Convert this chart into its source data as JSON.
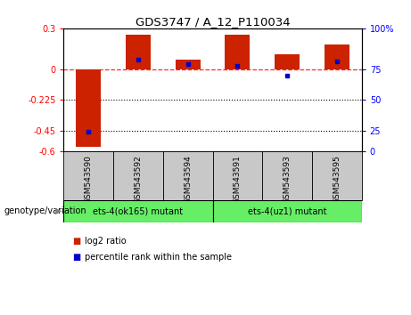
{
  "title": "GDS3747 / A_12_P110034",
  "samples": [
    "GSM543590",
    "GSM543592",
    "GSM543594",
    "GSM543591",
    "GSM543593",
    "GSM543595"
  ],
  "log2_ratio": [
    -0.57,
    0.255,
    0.07,
    0.255,
    0.11,
    0.18
  ],
  "percentile_rank": [
    18,
    81,
    78,
    77,
    69,
    80
  ],
  "groups": [
    {
      "label": "ets-4(ok165) mutant",
      "indices": [
        0,
        1,
        2
      ]
    },
    {
      "label": "ets-4(uz1) mutant",
      "indices": [
        3,
        4,
        5
      ]
    }
  ],
  "ylim": [
    -0.6,
    0.3
  ],
  "yticks_left": [
    0.3,
    0.0,
    -0.225,
    -0.45,
    -0.6
  ],
  "yticklabels_left": [
    "0.3",
    "0",
    "-0.225",
    "-0.45",
    "-0.6"
  ],
  "yticks_right_pos": [
    0.3,
    0.0,
    -0.225,
    -0.45,
    -0.6
  ],
  "yticklabels_right": [
    "100%",
    "75",
    "50",
    "25",
    "0"
  ],
  "bar_color_red": "#CC2200",
  "bar_color_blue": "#0000CC",
  "group_bg_color": "#66EE66",
  "label_bg_color": "#C8C8C8",
  "genotype_label": "genotype/variation",
  "legend_red": "log2 ratio",
  "legend_blue": "percentile rank within the sample"
}
